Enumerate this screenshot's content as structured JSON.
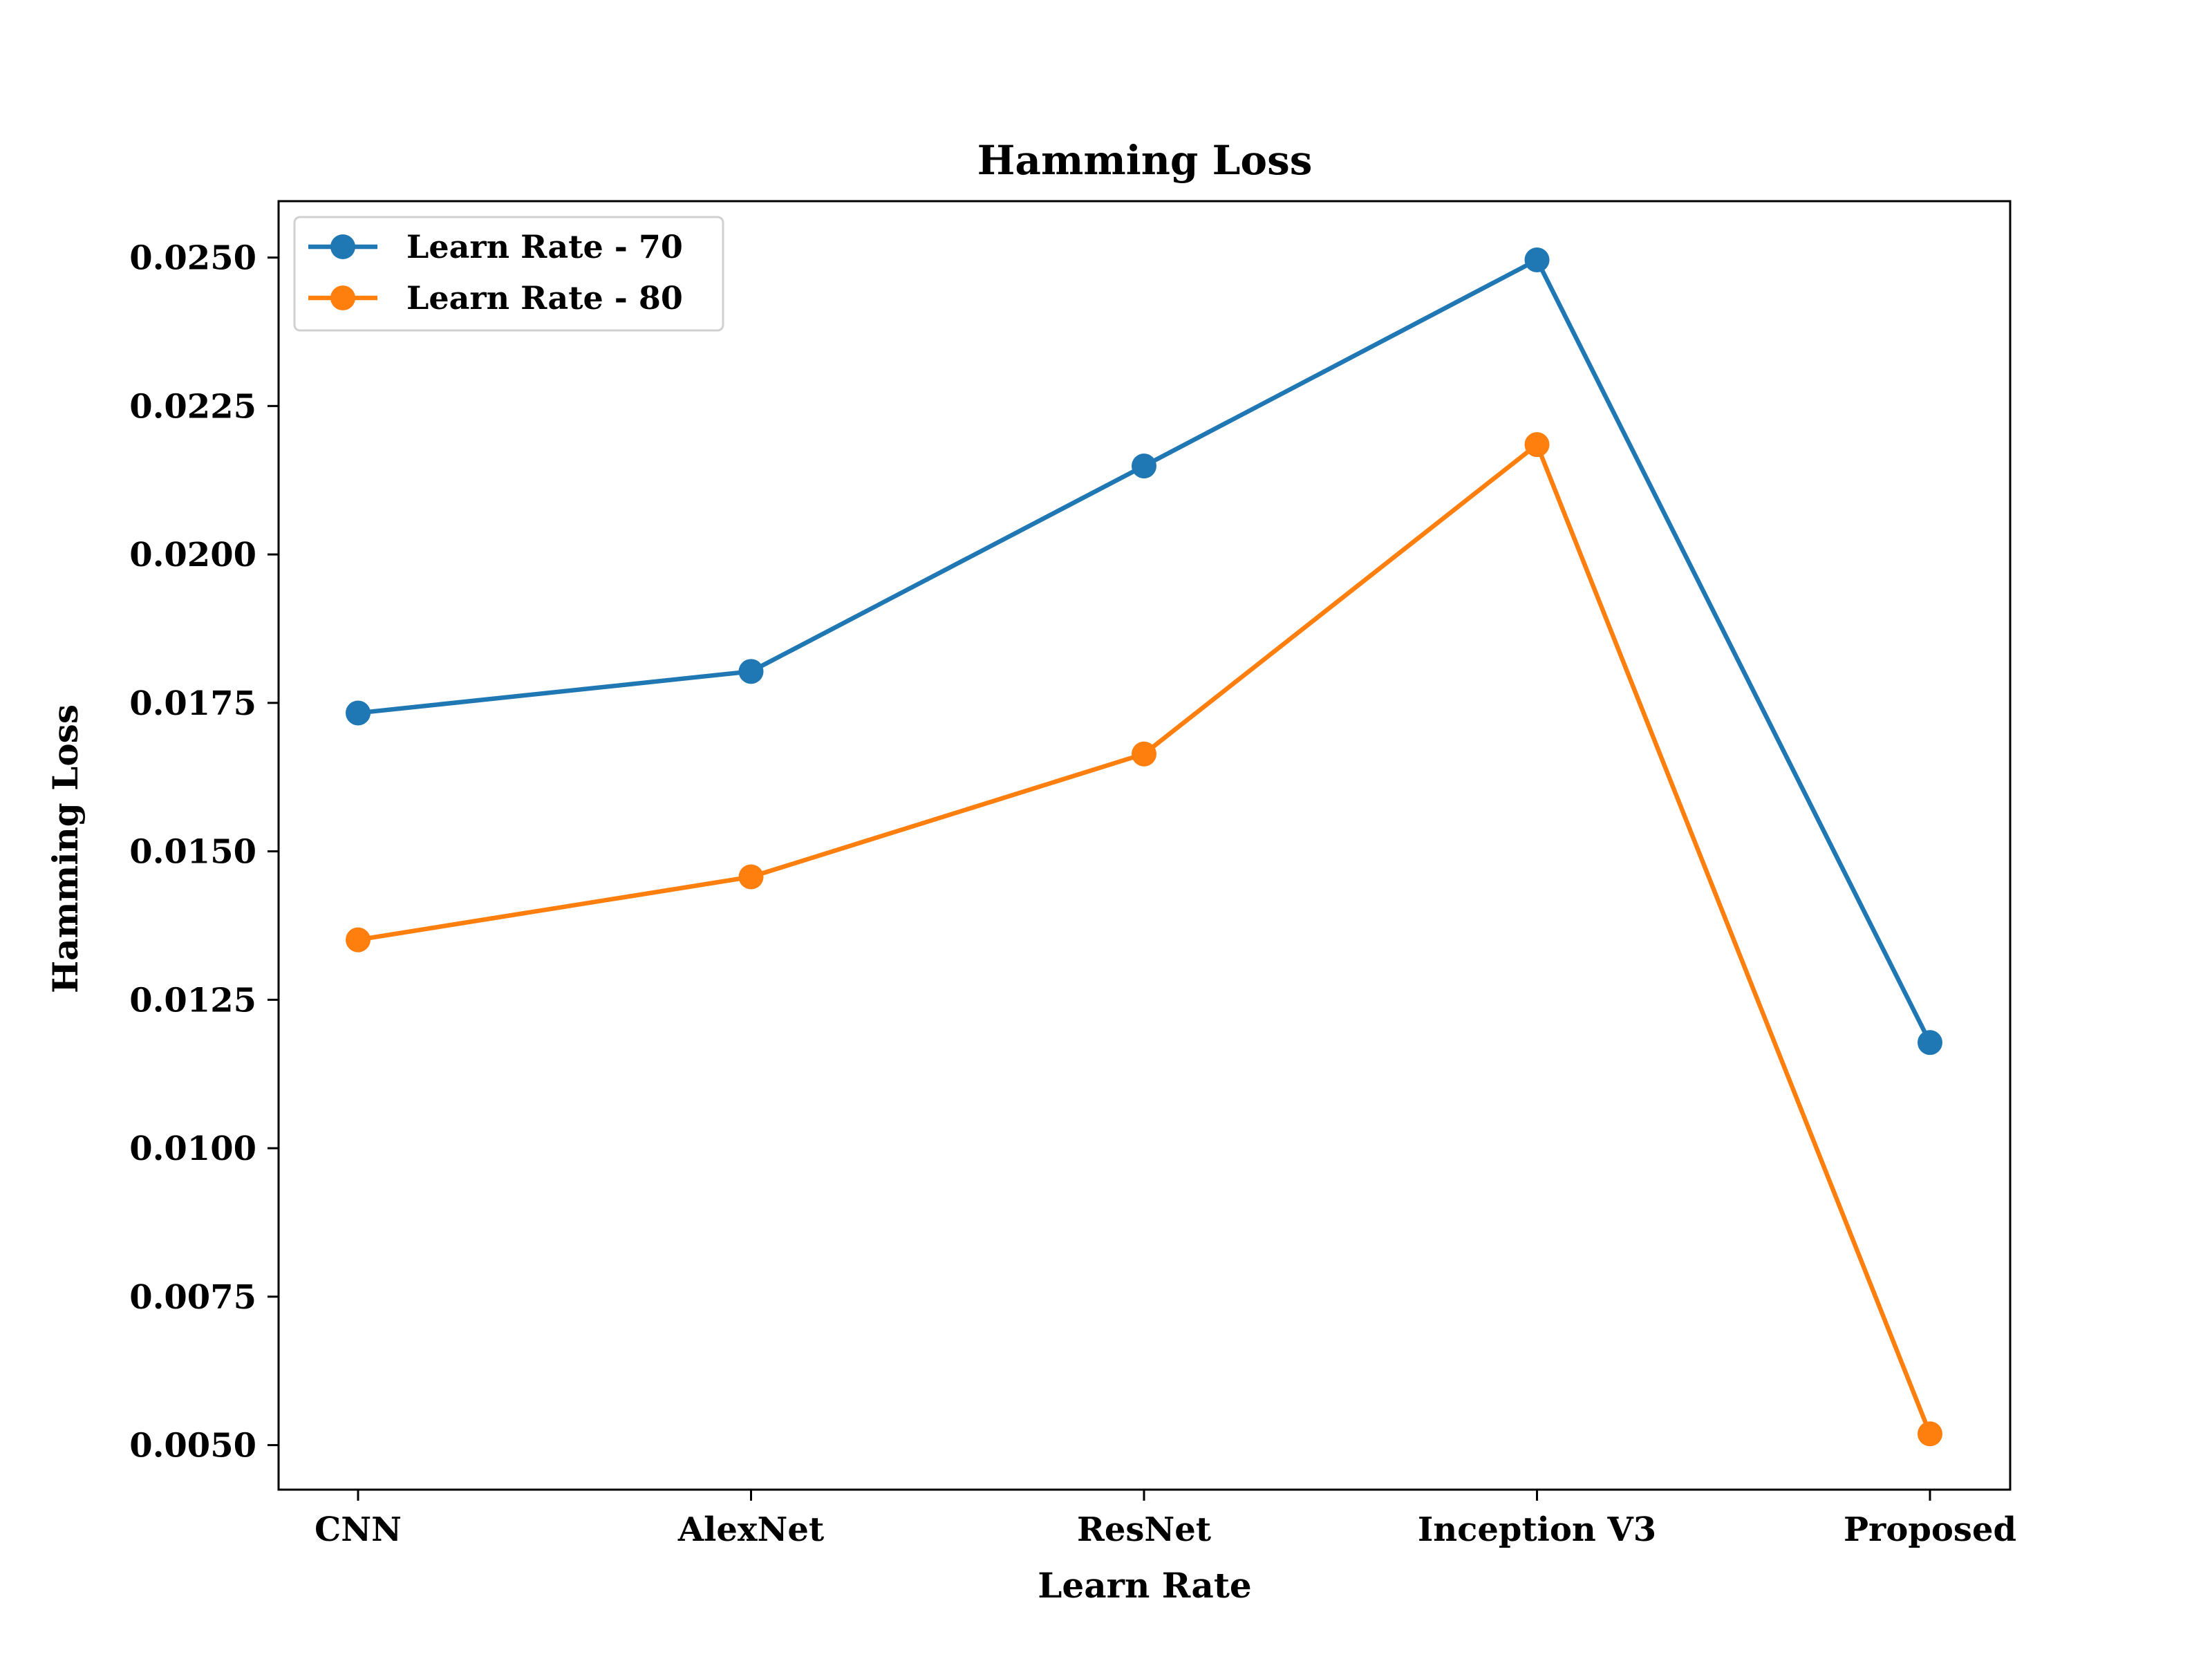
{
  "chart_data": {
    "type": "line",
    "title": "Hamming Loss",
    "xlabel": "Learn Rate",
    "ylabel": "Hamming Loss",
    "categories": [
      "CNN",
      "AlexNet",
      "ResNet",
      "Inception V3",
      "Proposed"
    ],
    "ylim": [
      0.00425,
      0.02595
    ],
    "yticks": [
      0.005,
      0.0075,
      0.01,
      0.0125,
      0.015,
      0.0175,
      0.02,
      0.0225,
      0.025
    ],
    "ytick_labels": [
      "0.0050",
      "0.0075",
      "0.0100",
      "0.0125",
      "0.0150",
      "0.0175",
      "0.0200",
      "0.0225",
      "0.0250"
    ],
    "grid": false,
    "legend_position": "top-left",
    "series": [
      {
        "name": "Learn Rate - 70",
        "color": "#1f77b4",
        "marker": "circle",
        "values": [
          0.01733,
          0.01803,
          0.02149,
          0.02496,
          0.01178
        ]
      },
      {
        "name": "Learn Rate - 80",
        "color": "#ff7f0e",
        "marker": "circle",
        "values": [
          0.01351,
          0.01457,
          0.01664,
          0.02185,
          0.00519
        ]
      }
    ]
  }
}
